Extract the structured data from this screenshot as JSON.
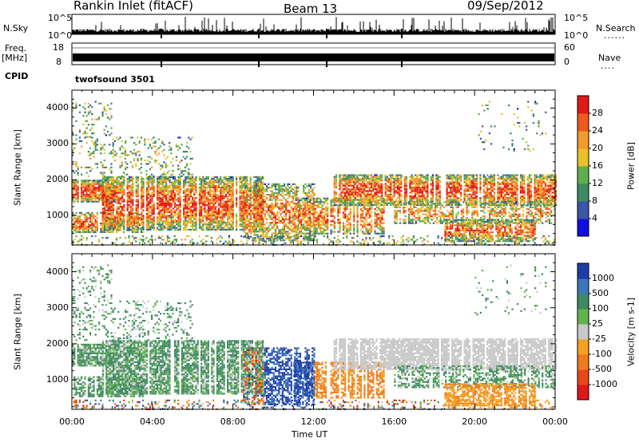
{
  "header": {
    "station": "Rankin Inlet (fitACF)",
    "beam": "Beam 13",
    "date": "09/Sep/2012"
  },
  "labels": {
    "nsky": "N.Sky",
    "nsearch": "N.Search",
    "freq": "Freq.",
    "mhz": "[MHz]",
    "nave": "Nave",
    "cpid": "CPID",
    "cpid_value": "twofsound 3501",
    "dots": "......",
    "dots_short": "...."
  },
  "nsky_ticks": [
    "10^5",
    "10^0"
  ],
  "nsearch_ticks": [
    "10^5",
    "10^0"
  ],
  "freq_ticks": [
    "18",
    "8"
  ],
  "nave_ticks": [
    "60",
    "0"
  ],
  "chart_data": [
    {
      "type": "heatmap",
      "panel": "power",
      "title": "",
      "xlabel": "Time UT",
      "ylabel": "Slant Range [km]",
      "x_ticks": [
        "00:00",
        "04:00",
        "08:00",
        "12:00",
        "16:00",
        "20:00",
        "00:00"
      ],
      "xlim": [
        0,
        24
      ],
      "y_ticks": [
        1000,
        2000,
        3000,
        4000
      ],
      "ylim": [
        180,
        4500
      ],
      "colorbar": {
        "label": "Power [dB]",
        "ticks": [
          4,
          8,
          12,
          16,
          20,
          24,
          28
        ],
        "colors": [
          "#1010e0",
          "#3c56a8",
          "#3d8a64",
          "#5fae4e",
          "#e8c02a",
          "#f39a2c",
          "#ee5a1e",
          "#e01818"
        ]
      }
    },
    {
      "type": "heatmap",
      "panel": "velocity",
      "title": "",
      "xlabel": "Time UT",
      "ylabel": "Slant Range [km]",
      "x_ticks": [
        "00:00",
        "04:00",
        "08:00",
        "12:00",
        "16:00",
        "20:00",
        "00:00"
      ],
      "xlim": [
        0,
        24
      ],
      "y_ticks": [
        1000,
        2000,
        3000,
        4000
      ],
      "ylim": [
        180,
        4500
      ],
      "colorbar": {
        "label": "Velocity [m s-1]",
        "ticks": [
          1000,
          500,
          100,
          25,
          -25,
          -100,
          -500,
          -1000
        ],
        "colors": [
          "#1e3da8",
          "#3b76b8",
          "#3f8a62",
          "#62b34e",
          "#c8c8c8",
          "#f5a020",
          "#f07a20",
          "#e84818",
          "#e01818"
        ]
      }
    }
  ]
}
